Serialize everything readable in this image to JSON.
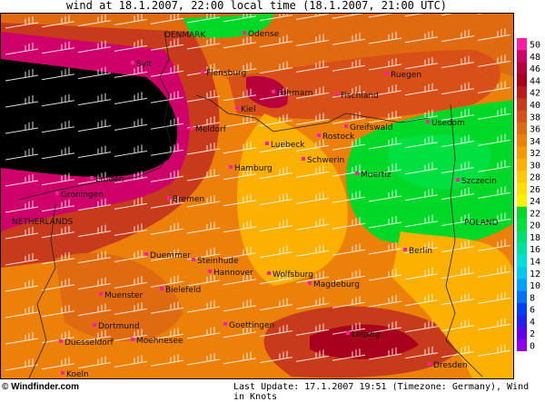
{
  "title": "wind at 18.1.2007, 22:00 local time (18.1.2007, 21:00 UTC)",
  "footer": {
    "copyright": "© Windfinder.com",
    "update": "Last Update: 17.1.2007 19:51 (Timezone: Germany), Wind in Knots"
  },
  "legend": {
    "unit": "Knots",
    "values": [
      50,
      48,
      46,
      44,
      42,
      40,
      38,
      36,
      34,
      32,
      30,
      28,
      26,
      24,
      22,
      20,
      18,
      16,
      14,
      12,
      10,
      8,
      6,
      4,
      2,
      0
    ],
    "colors": [
      "#ff1fa0",
      "#d0006a",
      "#b8003a",
      "#a8001c",
      "#b81c1c",
      "#c83a1c",
      "#d85018",
      "#e06a10",
      "#ec8008",
      "#f89800",
      "#fcb000",
      "#ffc800",
      "#ffe000",
      "#fff000",
      "#00d828",
      "#00e040",
      "#00e070",
      "#00e0a0",
      "#00e0d8",
      "#00c8f0",
      "#00a0f8",
      "#0070f8",
      "#0040f0",
      "#2020f0",
      "#6000f0",
      "#9000f0"
    ]
  },
  "countries": [
    "DENMARK",
    "NETHERLANDS",
    "POLAND"
  ],
  "places": [
    "Odense",
    "Sylt",
    "Flensburg",
    "Kiel",
    "Fehmarn",
    "Fischland",
    "Ruegen",
    "Meldorf",
    "Rostock",
    "Greifswald",
    "Usedom",
    "Luebeck",
    "Schwerin",
    "Hamburg",
    "Muertiz",
    "Szczecin",
    "Emden",
    "Groningen",
    "Bremen",
    "Berlin",
    "Duemmer",
    "Steinhude",
    "Hannover",
    "Wolfsburg",
    "Magdeburg",
    "Bielefeld",
    "Muenster",
    "Dortmund",
    "Goettingen",
    "Moehnesee",
    "Duesseldorf",
    "Leipzig",
    "Dresden",
    "Koeln"
  ]
}
